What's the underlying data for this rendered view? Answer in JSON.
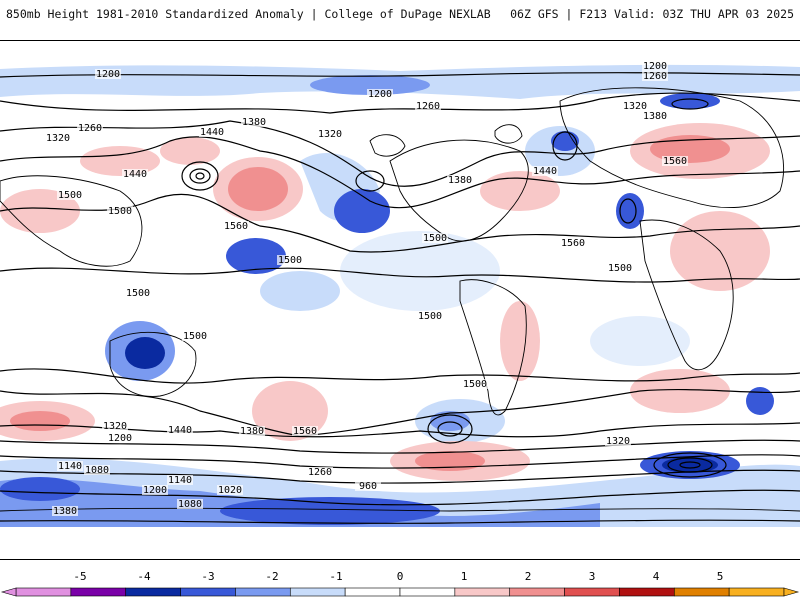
{
  "header": {
    "title": "850mb Height 1981-2010 Standardized Anomaly | College of DuPage NEXLAB",
    "run_info": "06Z GFS | F213 Valid: 03Z THU APR 03 2025"
  },
  "map": {
    "projection": "global-equirectangular",
    "contour_labels": [
      {
        "text": "1200"
      },
      {
        "text": "1200"
      },
      {
        "text": "1200"
      },
      {
        "text": "1260"
      },
      {
        "text": "1260"
      },
      {
        "text": "1260"
      },
      {
        "text": "1320"
      },
      {
        "text": "1320"
      },
      {
        "text": "1320"
      },
      {
        "text": "1380"
      },
      {
        "text": "1380"
      },
      {
        "text": "1380"
      },
      {
        "text": "1440"
      },
      {
        "text": "1440"
      },
      {
        "text": "1440"
      },
      {
        "text": "1500"
      },
      {
        "text": "1500"
      },
      {
        "text": "1500"
      },
      {
        "text": "1500"
      },
      {
        "text": "1500"
      },
      {
        "text": "1560"
      },
      {
        "text": "1560"
      },
      {
        "text": "1560"
      },
      {
        "text": "1560"
      },
      {
        "text": "1500"
      },
      {
        "text": "1500"
      },
      {
        "text": "1500"
      },
      {
        "text": "1440"
      },
      {
        "text": "1380"
      },
      {
        "text": "1320"
      },
      {
        "text": "1200"
      },
      {
        "text": "1140"
      },
      {
        "text": "1080"
      },
      {
        "text": "1020"
      },
      {
        "text": "960"
      },
      {
        "text": "1260"
      },
      {
        "text": "1140"
      },
      {
        "text": "1200"
      },
      {
        "text": "1080"
      },
      {
        "text": "1380"
      },
      {
        "text": "1320"
      },
      {
        "text": "1500"
      }
    ]
  },
  "colorbar": {
    "tick_labels": [
      "-5",
      "-4",
      "-3",
      "-2",
      "-1",
      "0",
      "1",
      "2",
      "3",
      "4",
      "5"
    ],
    "colors": [
      "#e090e0",
      "#7a00a8",
      "#0a2aa0",
      "#3858d8",
      "#7a9af0",
      "#c8dcfa",
      "#ffffff",
      "#ffffff",
      "#f8c8c8",
      "#f09090",
      "#e05050",
      "#b01010",
      "#e08000",
      "#f8b020"
    ]
  }
}
